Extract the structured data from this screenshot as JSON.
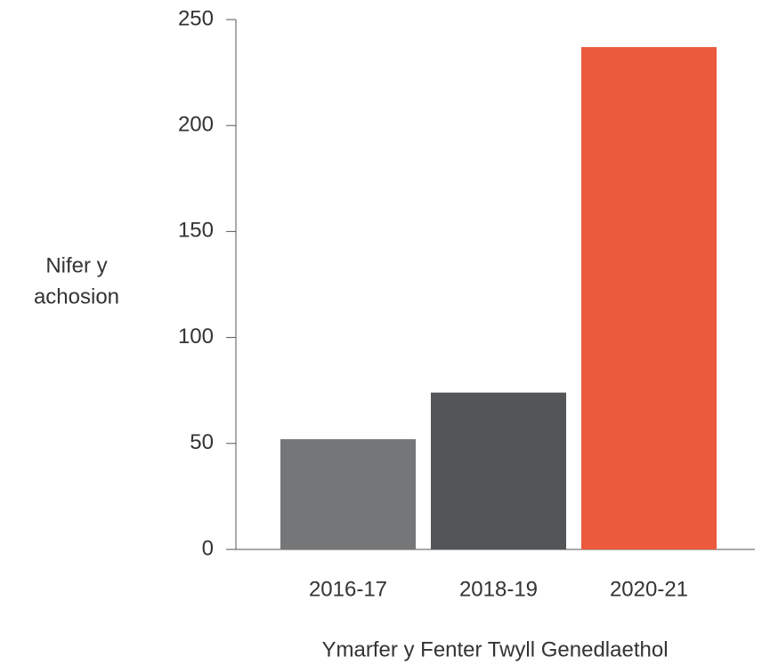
{
  "chart_data": {
    "type": "bar",
    "categories": [
      "2016-17",
      "2018-19",
      "2020-21"
    ],
    "values": [
      52,
      74,
      237
    ],
    "colors": [
      "#757677",
      "#545557",
      "#eb5a3c"
    ],
    "ylabel": [
      "Nifer y",
      "achosion"
    ],
    "xlabel": "Ymarfer y Fenter Twyll Genedlaethol",
    "ylim": [
      0,
      250
    ],
    "yticks": [
      0,
      50,
      100,
      150,
      200,
      250
    ],
    "grid": false
  }
}
